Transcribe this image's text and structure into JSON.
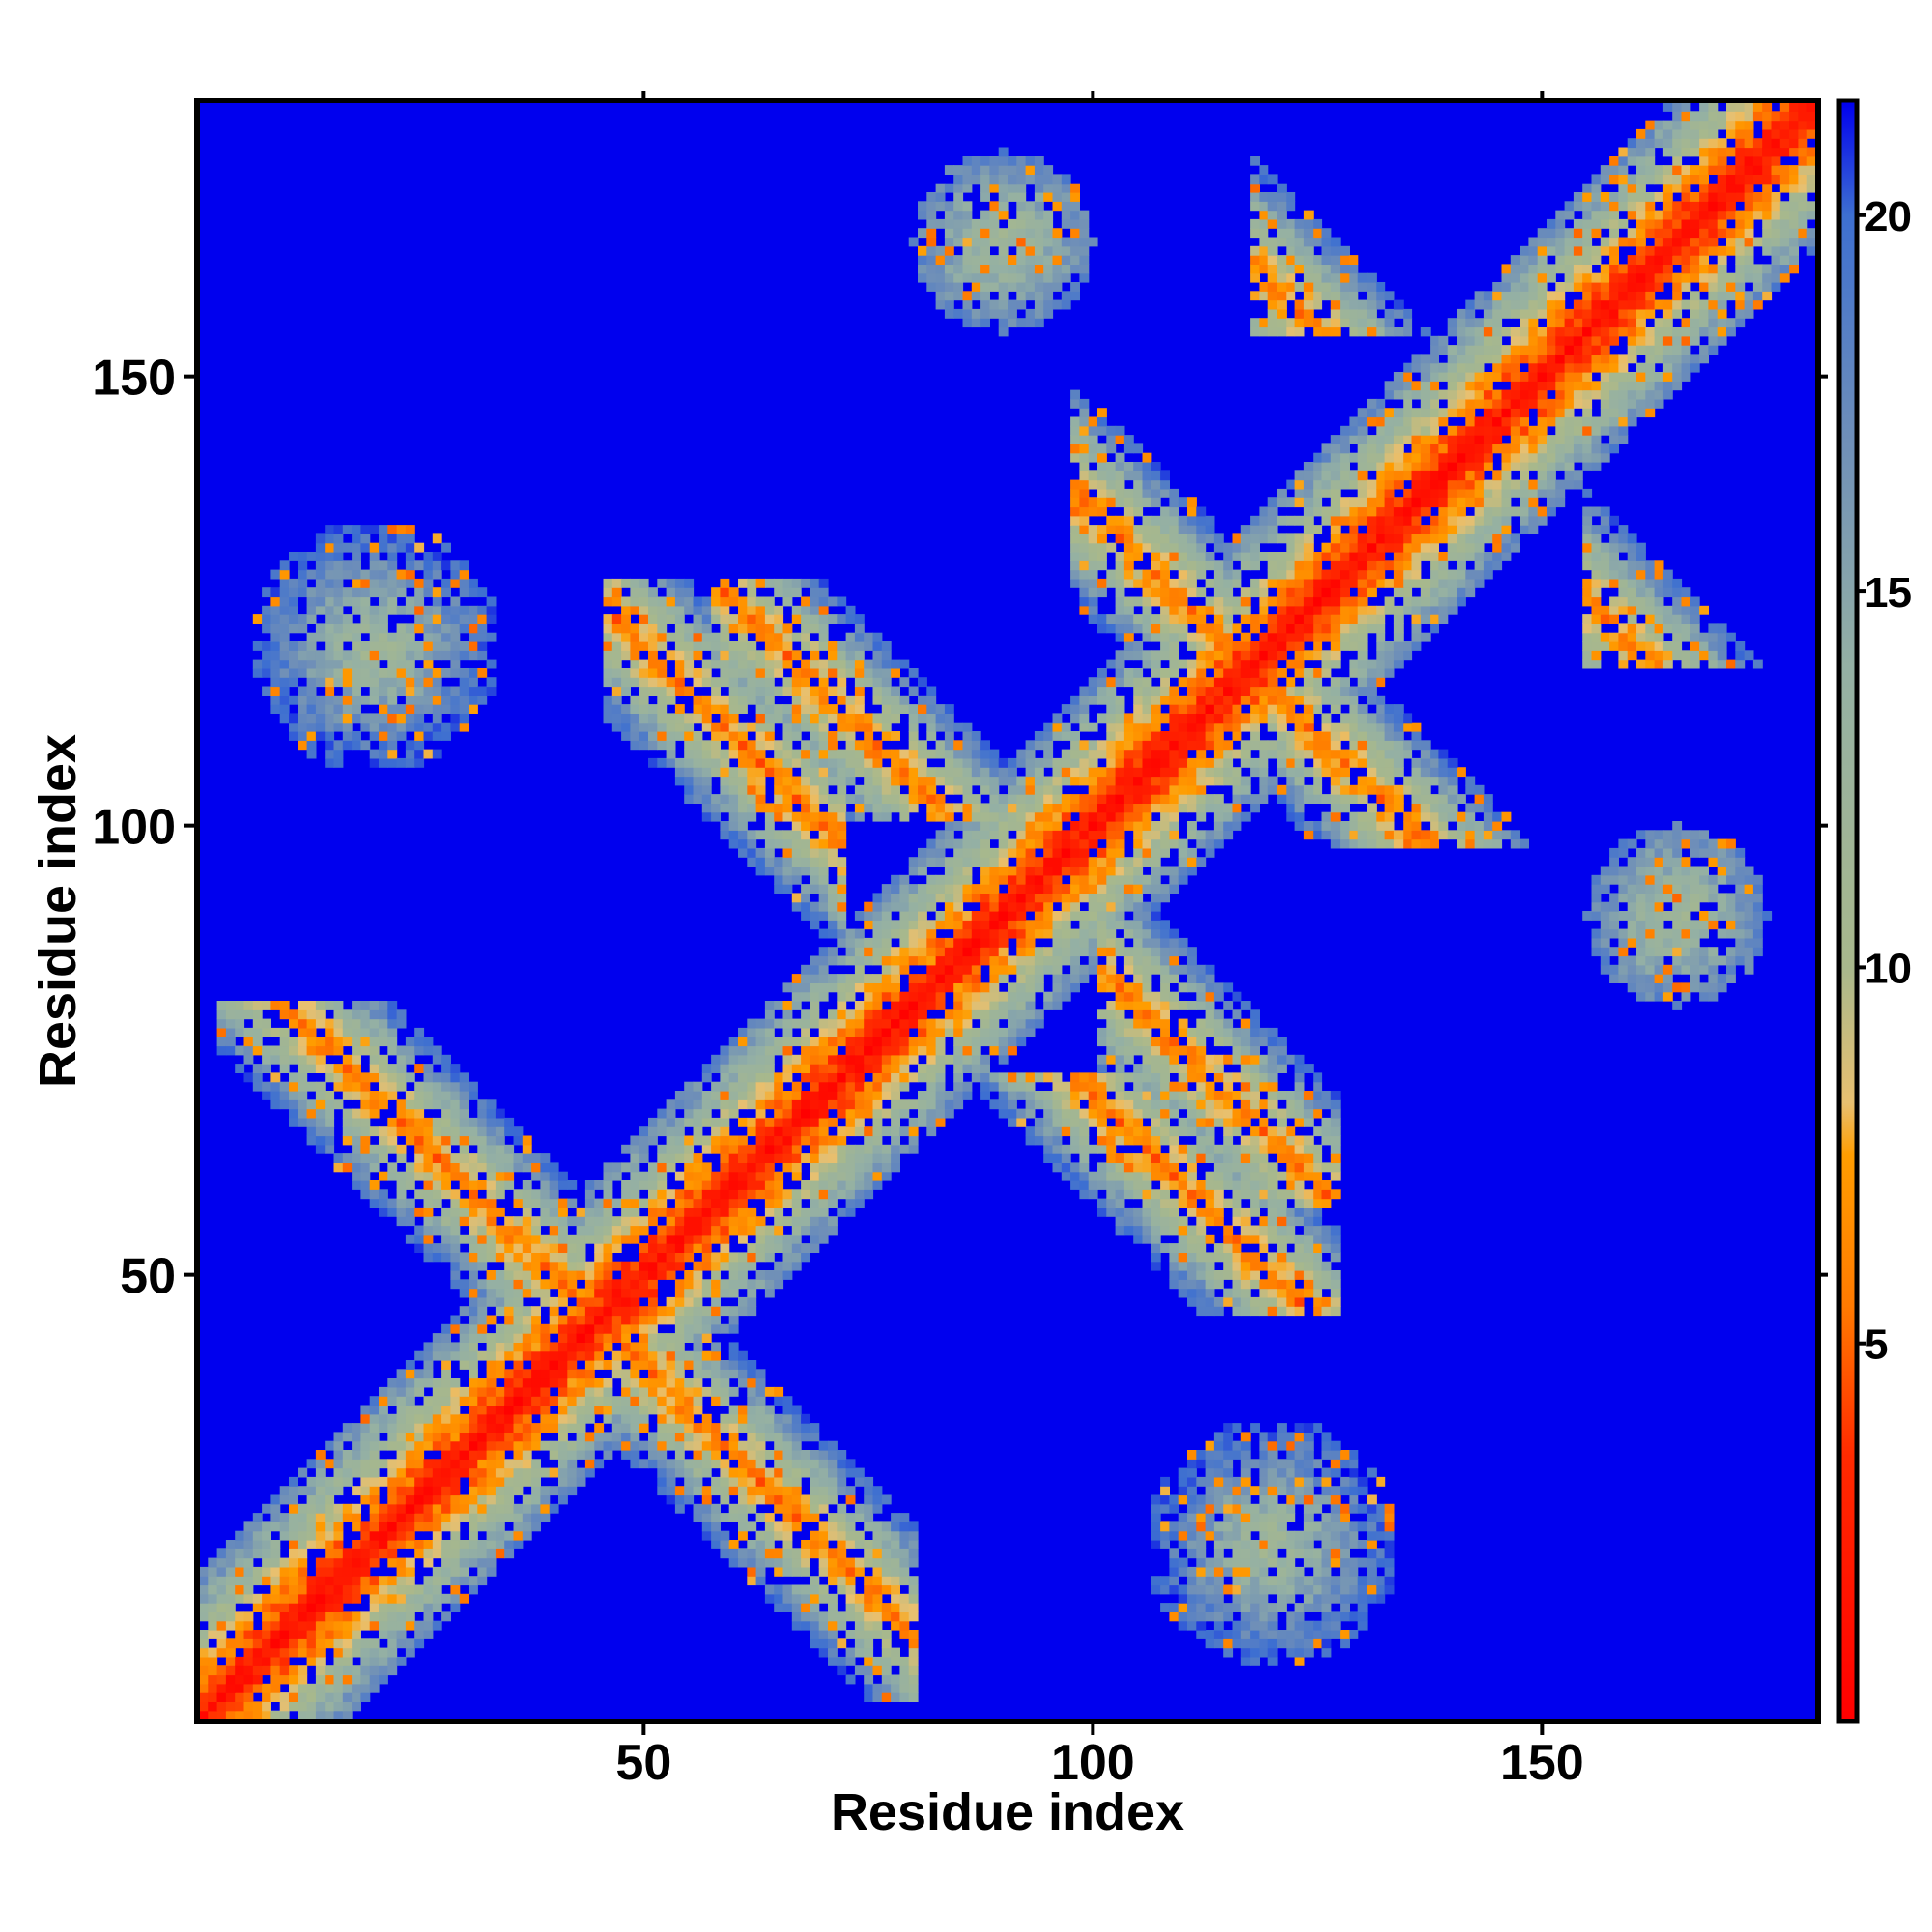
{
  "chart_data": {
    "type": "heatmap",
    "title": "",
    "xlabel": "Residue index",
    "ylabel": "Residue index",
    "n_residues": 180,
    "xlim": [
      1,
      180
    ],
    "ylim": [
      1,
      180
    ],
    "x_ticks": [
      50,
      100,
      150
    ],
    "y_ticks": [
      50,
      100,
      150
    ],
    "colorbar": {
      "ticks": [
        5,
        10,
        15,
        20
      ],
      "range": [
        0,
        21.5
      ],
      "position": "right",
      "stops": [
        {
          "value": 0,
          "color": "#ff0000"
        },
        {
          "value": 3.5,
          "color": "#ff2a00"
        },
        {
          "value": 5.5,
          "color": "#ff7a00"
        },
        {
          "value": 7.5,
          "color": "#ff9d00"
        },
        {
          "value": 8.2,
          "color": "#e8c070"
        },
        {
          "value": 10,
          "color": "#a8b88c"
        },
        {
          "value": 14,
          "color": "#94b0a4"
        },
        {
          "value": 17,
          "color": "#6f8fb8"
        },
        {
          "value": 20,
          "color": "#3d6fd1"
        },
        {
          "value": 21.5,
          "color": "#0000ee"
        }
      ]
    },
    "background_color": "#0000ee",
    "contact_features": [
      {
        "type": "diagonal",
        "half_width": 10,
        "description": "self-contact band along main diagonal"
      },
      {
        "type": "antiparallel",
        "i_range": [
          48,
          70
        ],
        "j_range": [
          90,
          125
        ],
        "i_plus_j": 170
      },
      {
        "type": "antiparallel",
        "i_range": [
          120,
          150
        ],
        "j_range": [
          157,
          180
        ],
        "i_plus_j": 280
      },
      {
        "type": "antiparallel",
        "i_range": [
          100,
          130
        ],
        "j_range": [
          117,
          157
        ],
        "i_plus_j": 235
      },
      {
        "type": "antiparallel",
        "i_range": [
          5,
          50
        ],
        "j_range": [
          47,
          78
        ],
        "i_plus_j": 90
      },
      {
        "type": "antiparallel",
        "i_range": [
          60,
          105
        ],
        "j_range": [
          103,
          125
        ],
        "i_plus_j": 185
      },
      {
        "type": "patch",
        "i_center": 20,
        "j_center": 120,
        "spread": 14
      },
      {
        "type": "patch",
        "i_center": 110,
        "j_center": 25,
        "spread": 14
      },
      {
        "type": "patch",
        "i_center": 175,
        "j_center": 95,
        "spread": 8
      },
      {
        "type": "patch",
        "i_center": 90,
        "j_center": 165,
        "spread": 10
      }
    ]
  }
}
